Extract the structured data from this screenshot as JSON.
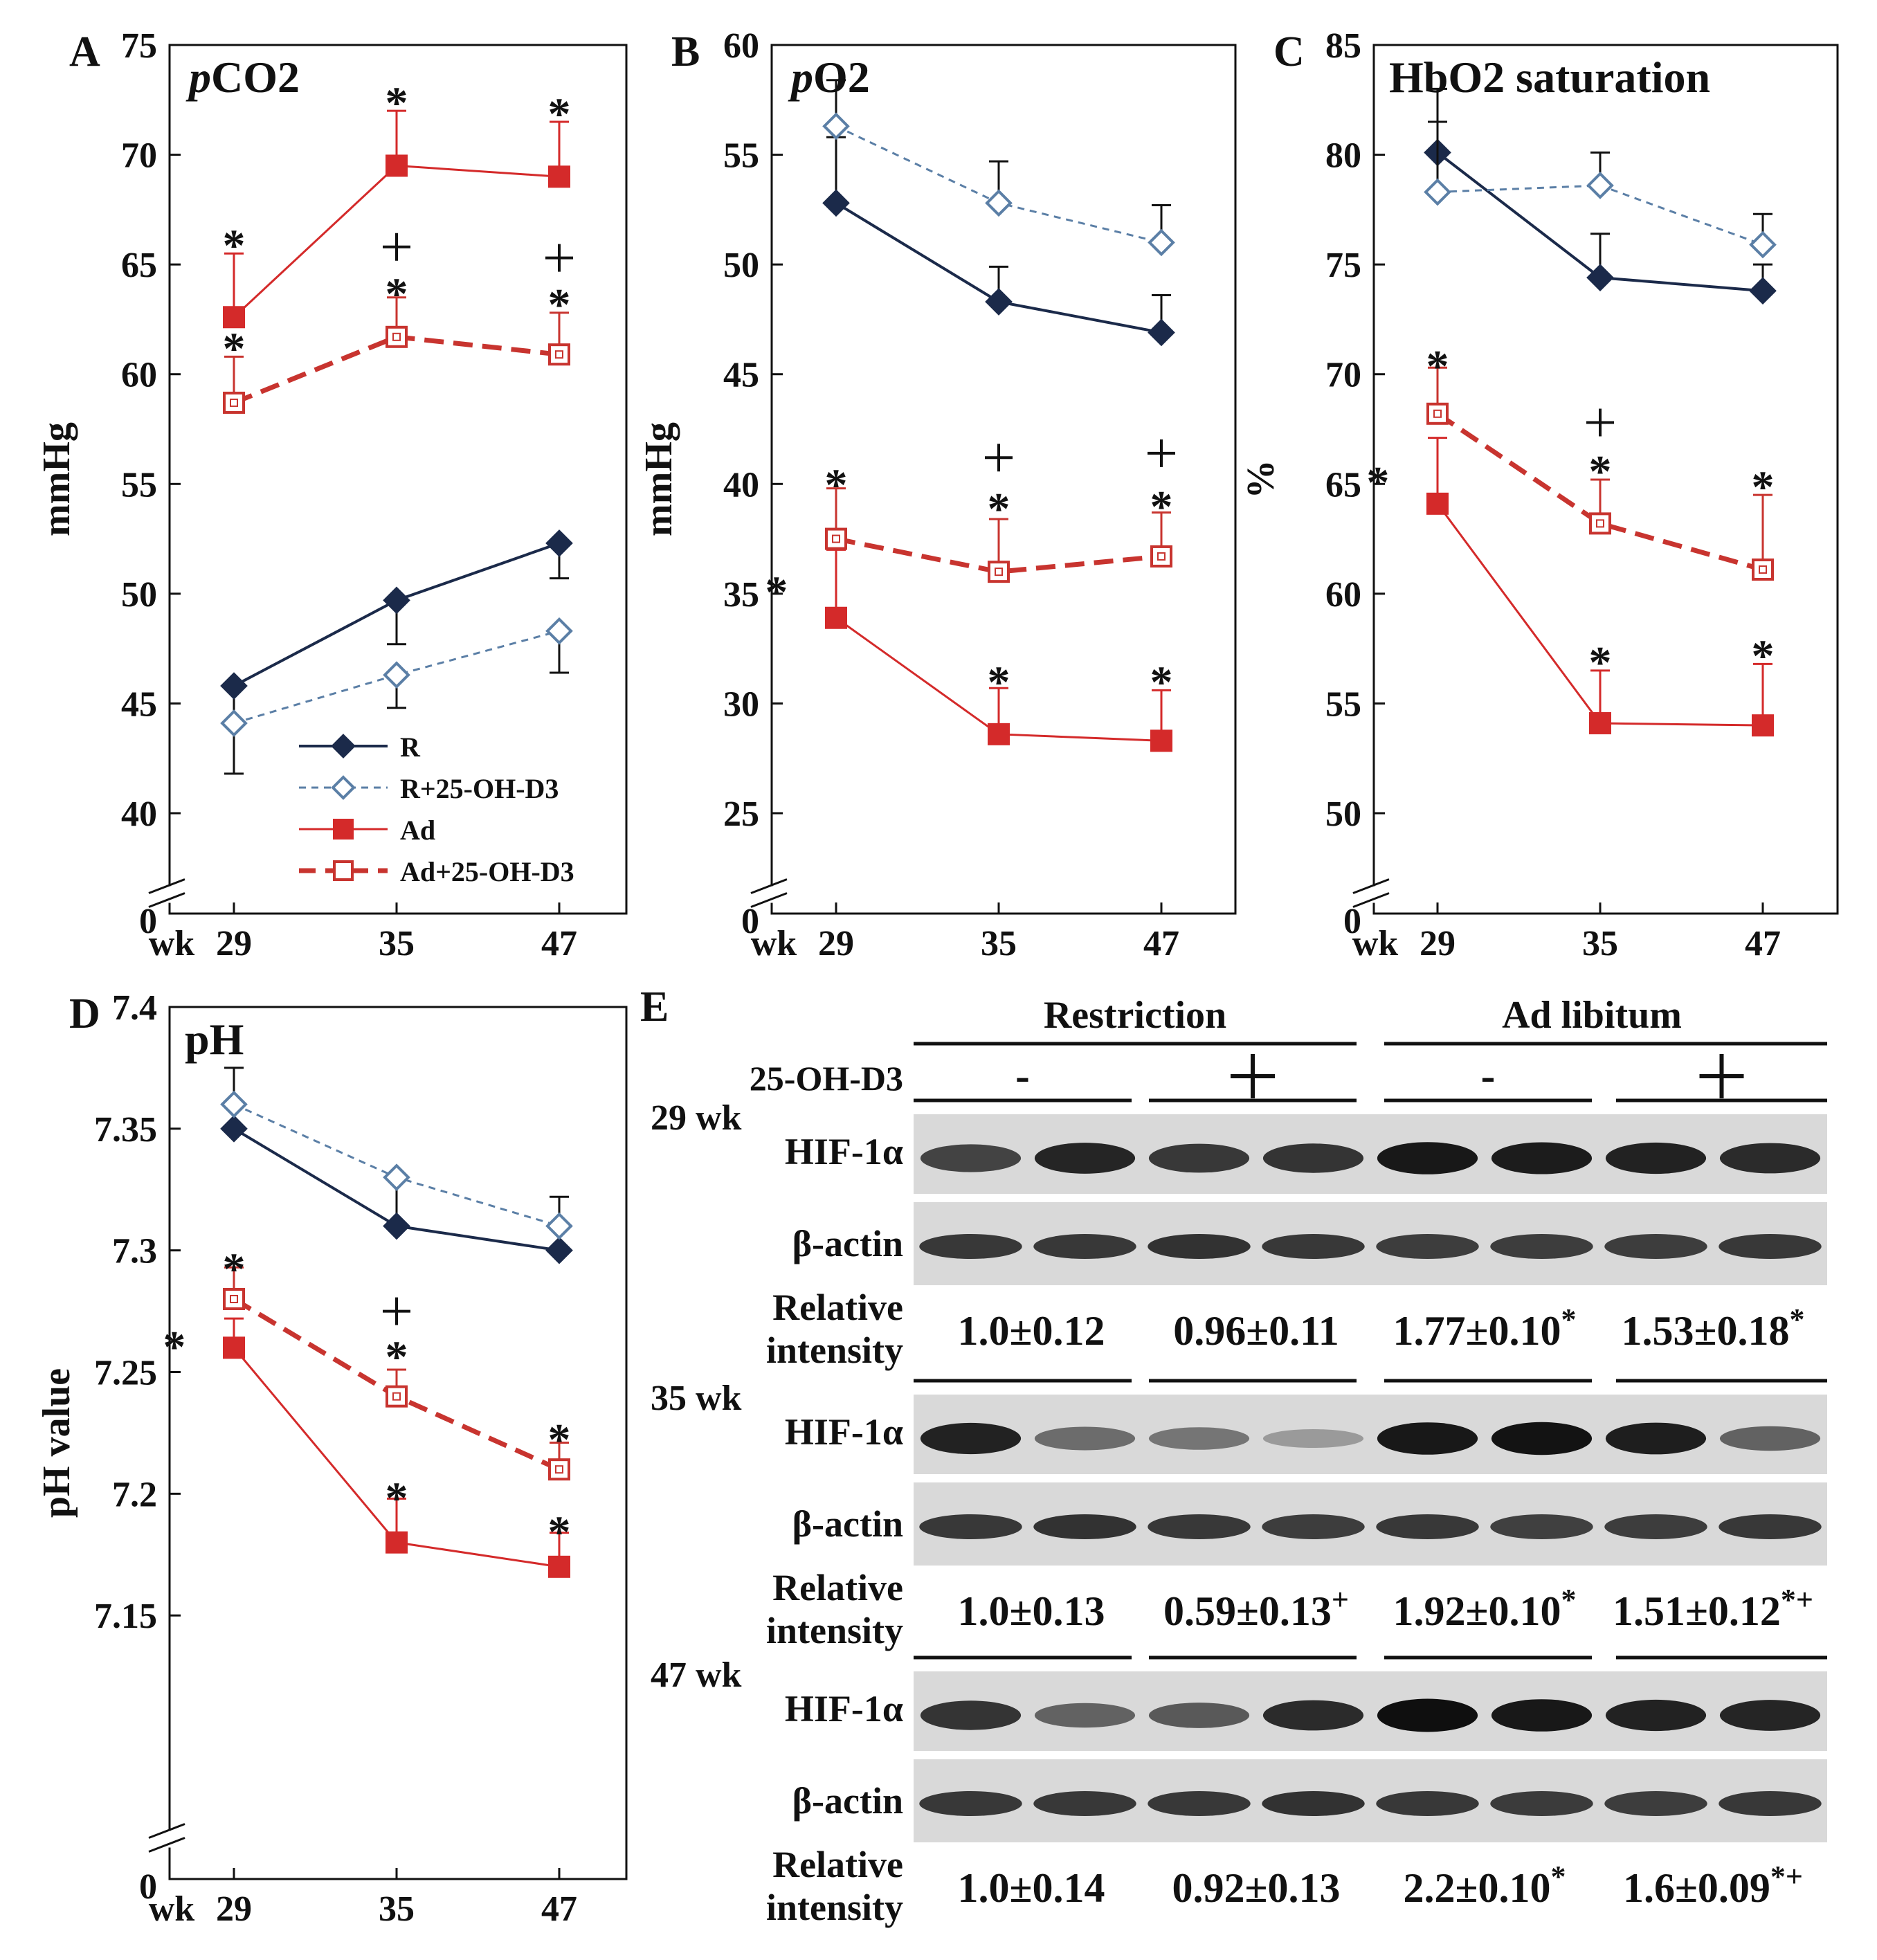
{
  "colors": {
    "R": "#1b2a4a",
    "R_D3": "#5b7fa6",
    "Ad": "#d42a2a",
    "Ad_D3": "#c8342f",
    "axis": "#111111",
    "blot_bg": "#d9d9d9",
    "band": "#151515"
  },
  "x_axis": {
    "tick_labels": [
      "29",
      "35",
      "47"
    ],
    "prefix": "wk"
  },
  "legend": {
    "entries": [
      "R",
      "R+25-OH-D3",
      "Ad",
      "Ad+25-OH-D3"
    ]
  },
  "chart_data": [
    {
      "panel": "A",
      "type": "line",
      "title": "pCO2",
      "title_italic_part": "p",
      "title_rest": "CO2",
      "ylabel": "mmHg",
      "yticks": [
        "40",
        "45",
        "50",
        "55",
        "60",
        "65",
        "70",
        "75"
      ],
      "ytick_values": [
        40,
        45,
        50,
        55,
        60,
        65,
        70,
        75
      ],
      "zero_label": "0",
      "ylim": [
        40,
        75
      ],
      "x": [
        29,
        35,
        47
      ],
      "series": [
        {
          "name": "R",
          "values": [
            45.8,
            49.7,
            52.3
          ],
          "err": [
            1.8,
            2.0,
            1.6
          ]
        },
        {
          "name": "R+25-OH-D3",
          "values": [
            44.1,
            46.3,
            48.3
          ],
          "err": [
            2.3,
            1.5,
            1.9
          ]
        },
        {
          "name": "Ad",
          "values": [
            62.6,
            69.5,
            69.0
          ],
          "err": [
            2.9,
            2.5,
            2.5
          ]
        },
        {
          "name": "Ad+25-OH-D3",
          "values": [
            58.7,
            61.7,
            60.9
          ],
          "err": [
            2.1,
            1.8,
            1.9
          ]
        }
      ],
      "annotations": [
        {
          "text": "*",
          "x": 29,
          "y": 66.5
        },
        {
          "text": "*",
          "x": 35,
          "y": 73.0
        },
        {
          "text": "*",
          "x": 47,
          "y": 72.5
        },
        {
          "text": "*",
          "x": 29,
          "y": 61.8
        },
        {
          "text": "+",
          "x": 35,
          "y": 65.8
        },
        {
          "text": "*",
          "x": 35,
          "y": 64.3
        },
        {
          "text": "+",
          "x": 47,
          "y": 65.3
        },
        {
          "text": "*",
          "x": 47,
          "y": 63.8
        }
      ]
    },
    {
      "panel": "B",
      "type": "line",
      "title": "pO2",
      "title_italic_part": "p",
      "title_rest": "O2",
      "ylabel": "mmHg",
      "yticks": [
        "25",
        "30",
        "35",
        "40",
        "45",
        "50",
        "55",
        "60"
      ],
      "ytick_values": [
        25,
        30,
        35,
        40,
        45,
        50,
        55,
        60
      ],
      "zero_label": "0",
      "ylim": [
        25,
        60
      ],
      "x": [
        29,
        35,
        47
      ],
      "series": [
        {
          "name": "R",
          "values": [
            52.8,
            48.3,
            46.9
          ],
          "err": [
            3.0,
            1.6,
            1.7
          ]
        },
        {
          "name": "R+25-OH-D3",
          "values": [
            56.3,
            52.8,
            51.0
          ],
          "err": [
            2.1,
            1.9,
            1.7
          ]
        },
        {
          "name": "Ad",
          "values": [
            33.9,
            28.6,
            28.3
          ],
          "err": [
            3.1,
            2.1,
            2.3
          ]
        },
        {
          "name": "Ad+25-OH-D3",
          "values": [
            37.5,
            36.0,
            36.7
          ],
          "err": [
            2.3,
            2.4,
            2.0
          ]
        }
      ],
      "annotations": [
        {
          "text": "*",
          "x": 29,
          "y": 40.6
        },
        {
          "text": "*",
          "x": 26.8,
          "y": 35.7
        },
        {
          "text": "+",
          "x": 35,
          "y": 41.2
        },
        {
          "text": "*",
          "x": 35,
          "y": 39.5
        },
        {
          "text": "+",
          "x": 47,
          "y": 41.4
        },
        {
          "text": "*",
          "x": 47,
          "y": 39.6
        },
        {
          "text": "*",
          "x": 35,
          "y": 31.6
        },
        {
          "text": "*",
          "x": 47,
          "y": 31.6
        }
      ]
    },
    {
      "panel": "C",
      "type": "line",
      "title": "HbO2 saturation",
      "ylabel": "%",
      "yticks": [
        "50",
        "55",
        "60",
        "65",
        "70",
        "75",
        "80",
        "85"
      ],
      "ytick_values": [
        50,
        55,
        60,
        65,
        70,
        75,
        80,
        85
      ],
      "zero_label": "0",
      "ylim": [
        50,
        85
      ],
      "x": [
        29,
        35,
        47
      ],
      "series": [
        {
          "name": "R",
          "values": [
            80.1,
            74.4,
            73.8
          ],
          "err": [
            2.9,
            2.0,
            1.2
          ]
        },
        {
          "name": "R+25-OH-D3",
          "values": [
            78.3,
            78.6,
            75.9
          ],
          "err": [
            3.2,
            1.5,
            1.4
          ]
        },
        {
          "name": "Ad",
          "values": [
            64.1,
            54.1,
            54.0
          ],
          "err": [
            3.0,
            2.4,
            2.8
          ]
        },
        {
          "name": "Ad+25-OH-D3",
          "values": [
            68.2,
            63.2,
            61.1
          ],
          "err": [
            2.1,
            2.0,
            3.4
          ]
        }
      ],
      "annotations": [
        {
          "text": "*",
          "x": 29,
          "y": 71.0
        },
        {
          "text": "*",
          "x": 26.8,
          "y": 65.7
        },
        {
          "text": "+",
          "x": 35,
          "y": 67.8
        },
        {
          "text": "*",
          "x": 35,
          "y": 66.2
        },
        {
          "text": "*",
          "x": 47,
          "y": 65.5
        },
        {
          "text": "*",
          "x": 35,
          "y": 57.5
        },
        {
          "text": "*",
          "x": 47,
          "y": 57.8
        }
      ]
    },
    {
      "panel": "D",
      "type": "line",
      "title": "pH",
      "ylabel": "pH value",
      "yticks": [
        "7.15",
        "7.2",
        "7.25",
        "7.3",
        "7.35",
        "7.4"
      ],
      "ytick_values": [
        7.15,
        7.2,
        7.25,
        7.3,
        7.35,
        7.4
      ],
      "zero_label": "0",
      "ylim": [
        7.1,
        7.4
      ],
      "x": [
        29,
        35,
        47
      ],
      "series": [
        {
          "name": "R",
          "values": [
            7.35,
            7.31,
            7.3
          ],
          "err": [
            0.025,
            0.019,
            0.022
          ]
        },
        {
          "name": "R+25-OH-D3",
          "values": [
            7.36,
            7.33,
            7.31
          ],
          "err": [
            0.0,
            0.0,
            0.0
          ]
        },
        {
          "name": "Ad",
          "values": [
            7.26,
            7.18,
            7.17
          ],
          "err": [
            0.012,
            0.018,
            0.014
          ]
        },
        {
          "name": "Ad+25-OH-D3",
          "values": [
            7.28,
            7.24,
            7.21
          ],
          "err": [
            0.013,
            0.011,
            0.011
          ]
        }
      ],
      "annotations": [
        {
          "text": "*",
          "x": 29,
          "y": 7.298
        },
        {
          "text": "*",
          "x": 26.8,
          "y": 7.266
        },
        {
          "text": "+",
          "x": 35,
          "y": 7.275
        },
        {
          "text": "*",
          "x": 35,
          "y": 7.262
        },
        {
          "text": "*",
          "x": 47,
          "y": 7.228
        },
        {
          "text": "*",
          "x": 35,
          "y": 7.204
        },
        {
          "text": "*",
          "x": 47,
          "y": 7.19
        }
      ]
    }
  ],
  "panel_e": {
    "label": "E",
    "group_restriction": "Restriction",
    "group_ad": "Ad libitum",
    "treatment_label": "25-OH-D3",
    "treatment_signs": [
      "-",
      "+",
      "-",
      "+"
    ],
    "hif_label": "HIF-1α",
    "actin_label": "β-actin",
    "relative_label_1": "Relative",
    "relative_label_2": "intensity",
    "weeks": [
      {
        "label": "29 wk",
        "values": [
          "1.0±0.12",
          "0.96±0.11",
          "1.77±0.10",
          "1.53±0.18"
        ],
        "marks": [
          "",
          "",
          "*",
          "*"
        ],
        "hif_intensity": [
          0.72,
          0.88,
          0.78,
          0.8,
          0.95,
          0.93,
          0.9,
          0.85
        ],
        "actin_intensity": [
          0.85,
          0.85,
          0.88,
          0.85,
          0.82,
          0.82,
          0.82,
          0.85
        ]
      },
      {
        "label": "35 wk",
        "values": [
          "1.0±0.13",
          "0.59±0.13",
          "1.92±0.10",
          "1.51±0.12"
        ],
        "marks": [
          "",
          "+",
          "*",
          "*+"
        ],
        "hif_intensity": [
          0.9,
          0.5,
          0.45,
          0.25,
          0.95,
          0.98,
          0.92,
          0.55
        ],
        "actin_intensity": [
          0.85,
          0.88,
          0.85,
          0.82,
          0.85,
          0.8,
          0.82,
          0.85
        ]
      },
      {
        "label": "47 wk",
        "values": [
          "1.0±0.14",
          "0.92±0.13",
          "2.2±0.10",
          "1.6±0.09"
        ],
        "marks": [
          "",
          "",
          "*",
          "*+"
        ],
        "hif_intensity": [
          0.8,
          0.55,
          0.6,
          0.85,
          1.0,
          0.95,
          0.9,
          0.88
        ],
        "actin_intensity": [
          0.85,
          0.85,
          0.85,
          0.88,
          0.85,
          0.83,
          0.82,
          0.85
        ]
      }
    ]
  }
}
